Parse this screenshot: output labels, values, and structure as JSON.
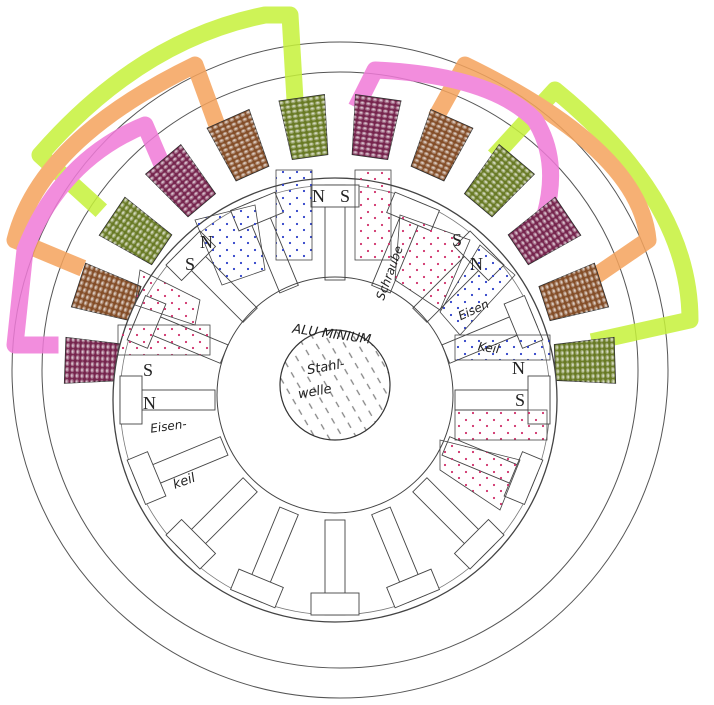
{
  "diagram": {
    "labels": {
      "aluminium": "ALU MINIUM",
      "shaft_line1": "Stahl-",
      "shaft_line2": "welle",
      "screw": "Schraube",
      "iron_right": "Eisen",
      "key_right": "Keil",
      "iron_left": "Eisen-",
      "key_left": "keil",
      "north": "N",
      "south": "S"
    },
    "colors": {
      "green_band": "#c6f23a",
      "orange_band": "#f5a35c",
      "pink_band": "#f07ad8",
      "coil_green": "#7a8f2a",
      "coil_brown": "#9a5a2e",
      "coil_purple": "#8a2a5a",
      "dots_blue": "#2c3fc8",
      "dots_red": "#d0306a",
      "ink": "#555555"
    },
    "coils": [
      {
        "name": "coil-1",
        "color": "purple"
      },
      {
        "name": "coil-2",
        "color": "brown"
      },
      {
        "name": "coil-3",
        "color": "green"
      },
      {
        "name": "coil-4",
        "color": "purple"
      },
      {
        "name": "coil-5",
        "color": "brown"
      },
      {
        "name": "coil-6",
        "color": "green"
      },
      {
        "name": "coil-7",
        "color": "purple"
      },
      {
        "name": "coil-8",
        "color": "brown"
      },
      {
        "name": "coil-9",
        "color": "green"
      },
      {
        "name": "coil-10",
        "color": "purple"
      },
      {
        "name": "coil-11",
        "color": "brown"
      },
      {
        "name": "coil-12",
        "color": "green"
      }
    ]
  }
}
